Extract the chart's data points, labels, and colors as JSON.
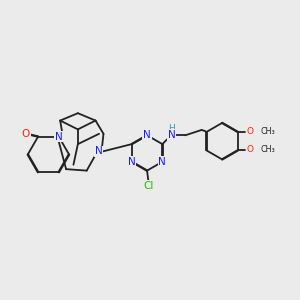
{
  "background_color": "#ebebeb",
  "bond_color": "#222222",
  "colors": {
    "N": "#1a1aff",
    "O": "#ff2200",
    "Cl": "#22bb00",
    "H": "#2aa0a0",
    "C": "#222222"
  }
}
